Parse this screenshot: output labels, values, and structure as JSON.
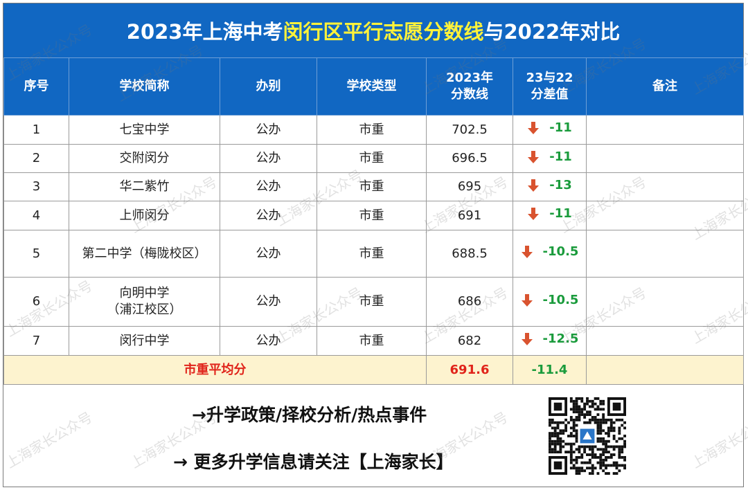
{
  "title": {
    "prefix": "2023年上海中考",
    "highlight": "闵行区平行志愿分数线",
    "suffix": "与2022年对比"
  },
  "table": {
    "headers": {
      "index": "序号",
      "school": "学校简称",
      "ownership": "办别",
      "type": "学校类型",
      "score_line1": "2023年",
      "score_line2": "分数线",
      "diff_line1": "23与22",
      "diff_line2": "分差值",
      "note": "备注"
    },
    "rows": [
      {
        "index": "1",
        "school": "七宝中学",
        "school2": "",
        "ownership": "公办",
        "type": "市重",
        "score": "702.5",
        "diff": "-11",
        "note": ""
      },
      {
        "index": "2",
        "school": "交附闵分",
        "school2": "",
        "ownership": "公办",
        "type": "市重",
        "score": "696.5",
        "diff": "-11",
        "note": ""
      },
      {
        "index": "3",
        "school": "华二紫竹",
        "school2": "",
        "ownership": "公办",
        "type": "市重",
        "score": "695",
        "diff": "-13",
        "note": ""
      },
      {
        "index": "4",
        "school": "上师闵分",
        "school2": "",
        "ownership": "公办",
        "type": "市重",
        "score": "691",
        "diff": "-11",
        "note": ""
      },
      {
        "index": "5",
        "school": "第二中学（梅陇校区）",
        "school2": "",
        "ownership": "公办",
        "type": "市重",
        "score": "688.5",
        "diff": "-10.5",
        "note": ""
      },
      {
        "index": "6",
        "school": "向明中学",
        "school2": "（浦江校区）",
        "ownership": "公办",
        "type": "市重",
        "score": "686",
        "diff": "-10.5",
        "note": ""
      },
      {
        "index": "7",
        "school": "闵行中学",
        "school2": "",
        "ownership": "公办",
        "type": "市重",
        "score": "682",
        "diff": "-12.5",
        "note": ""
      }
    ],
    "average": {
      "label": "市重平均分",
      "score": "691.6",
      "diff": "-11.4"
    }
  },
  "footer": {
    "line1": "→升学政策/择校分析/热点事件",
    "line2": "→ 更多升学信息请关注【上海家长】"
  },
  "watermark_text": "上海家长公众号",
  "colors": {
    "header_blue": "#1167c2",
    "title_highlight": "#fff23a",
    "diff_green": "#1a9b3c",
    "avg_red": "#e0231a",
    "avg_bg": "#fdf3cf",
    "arrow": "#d9532f"
  }
}
